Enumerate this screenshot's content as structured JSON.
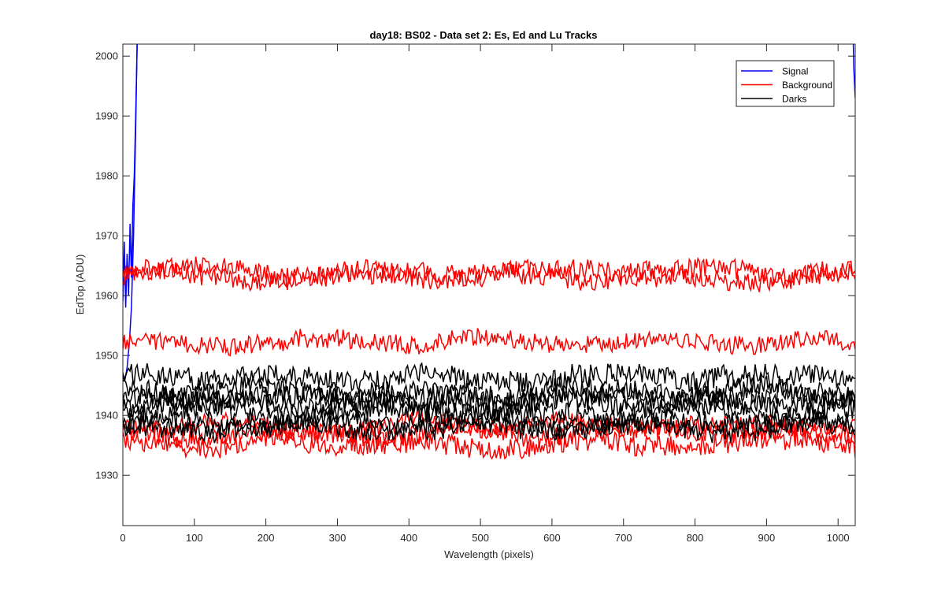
{
  "chart_data": {
    "type": "line",
    "title": "day18: BS02 - Data set 2: Es, Ed and Lu Tracks",
    "xlabel": "Wavelength (pixels)",
    "ylabel": "EdTop (ADU)",
    "xlim": [
      0,
      1024
    ],
    "ylim": [
      1921.6,
      2002
    ],
    "xticks": [
      0,
      100,
      200,
      300,
      400,
      500,
      600,
      700,
      800,
      900,
      1000
    ],
    "yticks": [
      1930,
      1940,
      1950,
      1960,
      1970,
      1980,
      1990,
      2000
    ],
    "grid": false,
    "legend_position": "top-right",
    "legend": [
      {
        "name": "Signal",
        "color": "#0000ff"
      },
      {
        "name": "Background",
        "color": "#ff0000"
      },
      {
        "name": "Darks",
        "color": "#000000"
      }
    ],
    "series": [
      {
        "group": "Signal",
        "color": "#0000ff",
        "x": [
          0,
          2,
          4,
          6,
          8,
          10,
          12,
          14,
          16,
          18,
          20,
          22
        ],
        "y": [
          1959,
          1969,
          1958,
          1967,
          1960,
          1972,
          1963,
          1975,
          1980,
          1990,
          2002,
          2010
        ]
      },
      {
        "group": "Signal",
        "color": "#0000ff",
        "x": [
          0,
          3,
          6,
          9,
          12,
          15,
          18,
          21
        ],
        "y": [
          1947,
          1946,
          1948,
          1952,
          1958,
          1970,
          1988,
          2010
        ]
      },
      {
        "group": "Signal",
        "color": "#0000ff",
        "x": [
          1020,
          1022,
          1024
        ],
        "y": [
          2010,
          1998,
          1993
        ]
      },
      {
        "group": "Background",
        "color": "#ff0000",
        "base": 1964.0,
        "noise": 1.6,
        "seed": 11
      },
      {
        "group": "Background",
        "color": "#ff0000",
        "base": 1963.2,
        "noise": 1.6,
        "seed": 12
      },
      {
        "group": "Background",
        "color": "#ff0000",
        "base": 1952.2,
        "noise": 1.5,
        "seed": 13
      },
      {
        "group": "Background",
        "color": "#ff0000",
        "base": 1937.0,
        "noise": 1.7,
        "seed": 14
      },
      {
        "group": "Background",
        "color": "#ff0000",
        "base": 1935.5,
        "noise": 1.7,
        "seed": 15
      },
      {
        "group": "Background",
        "color": "#ff0000",
        "base": 1938.5,
        "noise": 1.5,
        "seed": 16
      },
      {
        "group": "Darks",
        "color": "#000000",
        "base": 1946.5,
        "noise": 1.8,
        "seed": 21
      },
      {
        "group": "Darks",
        "color": "#000000",
        "base": 1944.0,
        "noise": 1.8,
        "seed": 22
      },
      {
        "group": "Darks",
        "color": "#000000",
        "base": 1942.0,
        "noise": 1.8,
        "seed": 23
      },
      {
        "group": "Darks",
        "color": "#000000",
        "base": 1940.5,
        "noise": 1.8,
        "seed": 24
      },
      {
        "group": "Darks",
        "color": "#000000",
        "base": 1939.0,
        "noise": 1.7,
        "seed": 25
      },
      {
        "group": "Darks",
        "color": "#000000",
        "base": 1937.8,
        "noise": 1.7,
        "seed": 26
      },
      {
        "group": "Darks",
        "color": "#000000",
        "base": 1943.0,
        "noise": 1.8,
        "seed": 27
      }
    ]
  }
}
